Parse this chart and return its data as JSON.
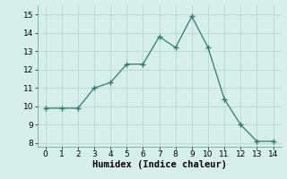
{
  "x": [
    0,
    1,
    2,
    3,
    4,
    5,
    6,
    7,
    8,
    9,
    10,
    11,
    12,
    13,
    14
  ],
  "y": [
    9.9,
    9.9,
    9.9,
    11.0,
    11.3,
    12.3,
    12.3,
    13.8,
    13.2,
    14.9,
    13.2,
    10.4,
    9.0,
    8.1,
    8.1
  ],
  "line_color": "#2e7d6e",
  "marker": "+",
  "marker_size": 4,
  "marker_linewidth": 1.0,
  "background_color": "#d6efea",
  "grid_color": "#b8d8d2",
  "xlabel": "Humidex (Indice chaleur)",
  "xlabel_fontsize": 7.5,
  "xlim": [
    -0.5,
    14.5
  ],
  "ylim": [
    7.8,
    15.5
  ],
  "yticks": [
    8,
    9,
    10,
    11,
    12,
    13,
    14,
    15
  ],
  "xticks": [
    0,
    1,
    2,
    3,
    4,
    5,
    6,
    7,
    8,
    9,
    10,
    11,
    12,
    13,
    14
  ],
  "tick_fontsize": 6.5
}
